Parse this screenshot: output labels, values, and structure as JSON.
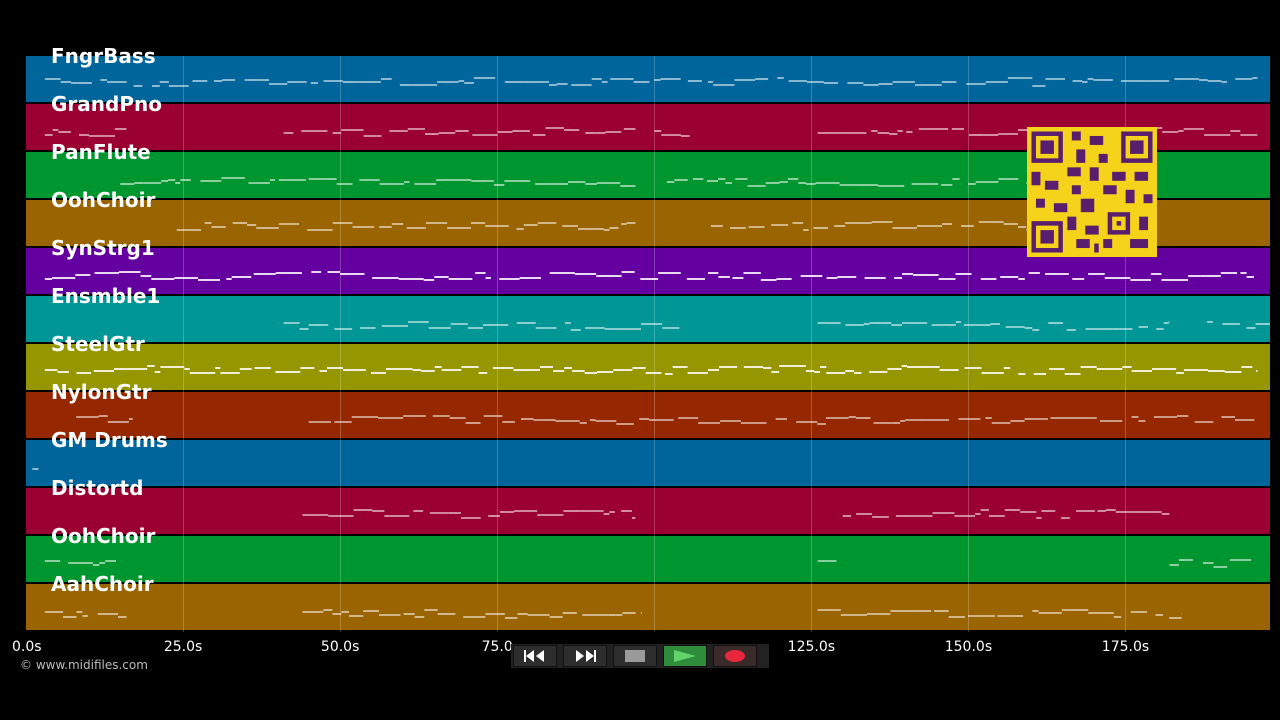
{
  "tracks": [
    {
      "label": "FngrBass",
      "color": "#00659a"
    },
    {
      "label": "GrandPno",
      "color": "#9b0032"
    },
    {
      "label": "PanFlute",
      "color": "#00962f"
    },
    {
      "label": "OohChoir",
      "color": "#9a6400"
    },
    {
      "label": "SynStrg1",
      "color": "#6400a0"
    },
    {
      "label": "Ensmble1",
      "color": "#009696"
    },
    {
      "label": "SteelGtr",
      "color": "#969600"
    },
    {
      "label": "NylonGtr",
      "color": "#962800"
    },
    {
      "label": "GM Drums",
      "color": "#00659a"
    },
    {
      "label": "Distortd",
      "color": "#9b0032"
    },
    {
      "label": "OohChoir",
      "color": "#00962f"
    },
    {
      "label": "AahChoir",
      "color": "#9a6400"
    }
  ],
  "time_axis": {
    "ticks": [
      "0.0s",
      "25.0s",
      "50.0s",
      "75.0",
      "125.0s",
      "150.0s",
      "175.0s"
    ],
    "tick_values": [
      0,
      25,
      50,
      75,
      125,
      150,
      175
    ],
    "gridlines": [
      25,
      50,
      75,
      100,
      125,
      150,
      175
    ],
    "max_seconds": 198
  },
  "copyright": "© www.midifiles.com",
  "transport": {
    "rewind_icon": "rewind-icon",
    "fastforward_icon": "fast-forward-icon",
    "stop_icon": "stop-icon",
    "play_icon": "play-icon",
    "record_icon": "record-icon"
  },
  "qr_code": {
    "icon": "qr-code-icon",
    "color": "#f5d31a"
  }
}
